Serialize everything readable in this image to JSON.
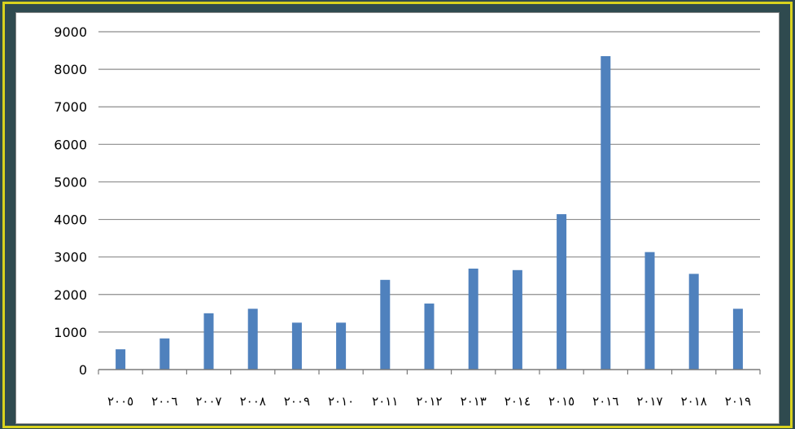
{
  "chart_data": {
    "type": "bar",
    "title": "",
    "xlabel": "",
    "ylabel": "",
    "categories": [
      "٢٠٠٥",
      "٢٠٠٦",
      "٢٠٠٧",
      "٢٠٠٨",
      "٢٠٠٩",
      "٢٠١٠",
      "٢٠١١",
      "٢٠١٢",
      "٢٠١٣",
      "٢٠١٤",
      "٢٠١٥",
      "٢٠١٦",
      "٢٠١٧",
      "٢٠١٨",
      "٢٠١٩"
    ],
    "values": [
      540,
      830,
      1500,
      1620,
      1250,
      1250,
      2390,
      1760,
      2690,
      2650,
      4140,
      8350,
      3130,
      2550,
      1620
    ],
    "ylim": [
      0,
      9000
    ],
    "yticks": [
      0,
      1000,
      2000,
      3000,
      4000,
      5000,
      6000,
      7000,
      8000,
      9000
    ],
    "grid": true,
    "legend": "none",
    "bar_color": "#4f81bd",
    "grid_color": "#8c8c8c"
  }
}
